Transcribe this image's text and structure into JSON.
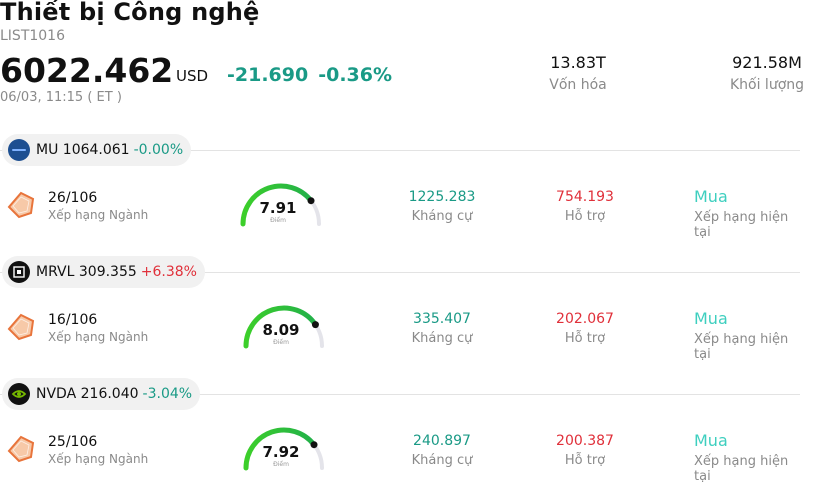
{
  "header": {
    "title": "Thiết bị Công nghệ",
    "code": "LIST1016",
    "price": "6022.462",
    "currency": "USD",
    "change": "-21.690",
    "change_pct": "-0.36%",
    "time": "06/03, 11:15 ( ET )",
    "market_cap": {
      "value": "13.83T",
      "label": "Vốn hóa"
    },
    "volume": {
      "value": "921.58M",
      "label": "Khối lượng"
    },
    "change_color": "#1a9a86"
  },
  "stocks": [
    {
      "symbol": "MU",
      "price": "1064.061",
      "change": "-0.00%",
      "direction": "down",
      "logo_icon": "micron-logo-icon",
      "logo_color": "#1d4f91",
      "rank": "26/106",
      "rank_label": "Xếp hạng Ngành",
      "score": "7.91",
      "score_fraction": 0.79,
      "score_label": "Điểm",
      "resistance": "1225.283",
      "resistance_label": "Kháng cự",
      "support": "754.193",
      "support_label": "Hỗ trợ",
      "rating": "Mua",
      "rating_label": "Xếp hạng hiện tại"
    },
    {
      "symbol": "MRVL",
      "price": "309.355",
      "change": "+6.38%",
      "direction": "up",
      "logo_icon": "marvell-logo-icon",
      "logo_color": "#111111",
      "rank": "16/106",
      "rank_label": "Xếp hạng Ngành",
      "score": "8.09",
      "score_fraction": 0.81,
      "score_label": "Điểm",
      "resistance": "335.407",
      "resistance_label": "Kháng cự",
      "support": "202.067",
      "support_label": "Hỗ trợ",
      "rating": "Mua",
      "rating_label": "Xếp hạng hiện tại"
    },
    {
      "symbol": "NVDA",
      "price": "216.040",
      "change": "-3.04%",
      "direction": "down",
      "logo_icon": "nvidia-logo-icon",
      "logo_color": "#111111",
      "rank": "25/106",
      "rank_label": "Xếp hạng Ngành",
      "score": "7.92",
      "score_fraction": 0.79,
      "score_label": "Điểm",
      "resistance": "240.897",
      "resistance_label": "Kháng cự",
      "support": "200.387",
      "support_label": "Hỗ trợ",
      "rating": "Mua",
      "rating_label": "Xếp hạng hiện tại"
    }
  ]
}
